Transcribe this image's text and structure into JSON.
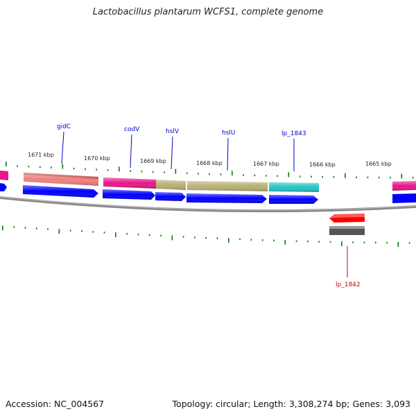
{
  "title": "Lactobacillus plantarum WCFS1, complete genome",
  "accession_label": "Accession:",
  "accession": "NC_004567",
  "topology_label": "Topology:",
  "topology": "circular",
  "length_label": "Length:",
  "length": "3,308,274 bp",
  "genes_label": "Genes:",
  "genes": "3,093",
  "ticks": [
    "1671 kbp",
    "1670 kbp",
    "1669 kbp",
    "1668 kbp",
    "1667 kbp",
    "1666 kbp",
    "1665 kbp"
  ],
  "gene_labels_forward": [
    "gidC",
    "codV",
    "hslV",
    "hslU",
    "lp_1843"
  ],
  "gene_labels_reverse": [
    "lp_1842"
  ],
  "colors": {
    "forward_label": "#0000cc",
    "reverse_label": "#cc0000",
    "tick": "#0a7a0a",
    "cds": "#0000ff",
    "gidC": "#f08080",
    "codV": "#e8168a",
    "hslVU": "#b8b075",
    "lp_1843": "#22c5c5",
    "reverse_cds": "#ff0000",
    "reverse_gene": "#555555",
    "backbone": "#888888"
  }
}
